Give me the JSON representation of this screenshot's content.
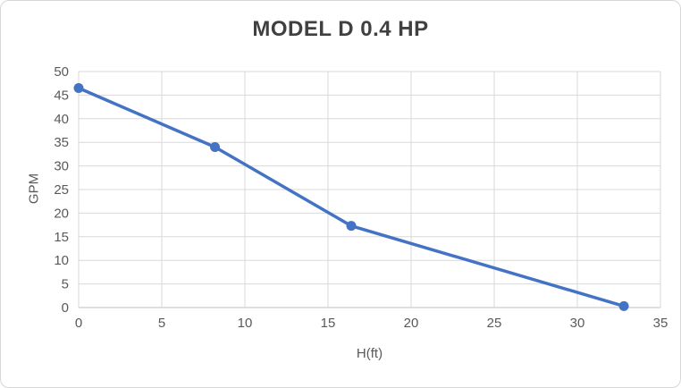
{
  "chart_data": {
    "type": "line",
    "title": "MODEL D 0.4 HP",
    "xlabel": "H(ft)",
    "ylabel": "GPM",
    "x": [
      0,
      8.2,
      16.4,
      32.8
    ],
    "y": [
      46.5,
      34,
      17.3,
      0.3
    ],
    "xlim": [
      0,
      35
    ],
    "ylim": [
      0,
      50
    ],
    "x_ticks": [
      0,
      5,
      10,
      15,
      20,
      25,
      30,
      35
    ],
    "y_ticks": [
      0,
      5,
      10,
      15,
      20,
      25,
      30,
      35,
      40,
      45,
      50
    ],
    "grid": true,
    "legend": false,
    "line_color": "#4472C4",
    "marker": "circle",
    "gridline_color": "#D9D9D9",
    "axis_line_color": "#BFBFBF",
    "tick_label_color": "#595959",
    "title_color": "#404040"
  }
}
